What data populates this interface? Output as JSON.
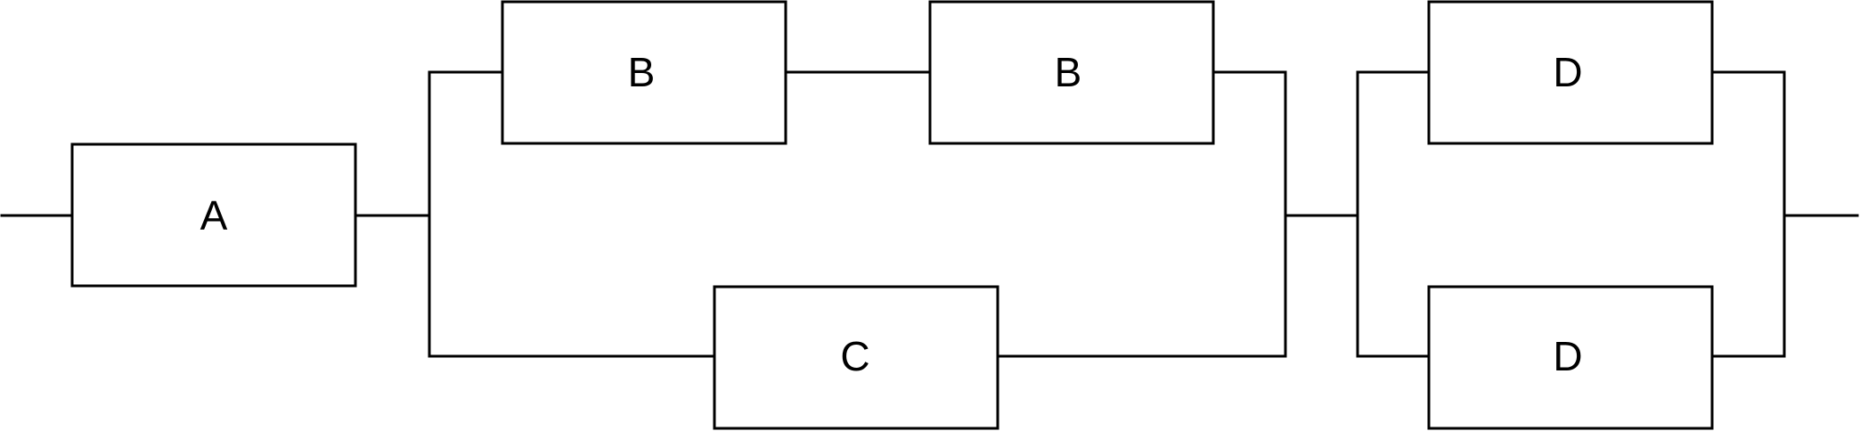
{
  "diagram": {
    "blocks": {
      "a": "A",
      "b1": "B",
      "b2": "B",
      "c": "C",
      "d1": "D",
      "d2": "D"
    }
  }
}
